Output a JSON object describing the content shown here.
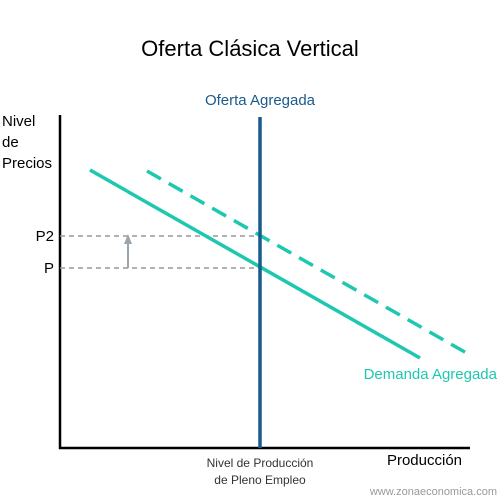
{
  "title": "Oferta Clásica Vertical",
  "y_axis_label": [
    "Nivel",
    "de",
    "Precios"
  ],
  "x_axis_label": "Producción",
  "supply_label": "Oferta Agregada",
  "demand_label": "Demanda Agregada",
  "price_labels": [
    "P2",
    "P"
  ],
  "full_employment_label": [
    "Nivel de Producción",
    "de Pleno Empleo"
  ],
  "watermark": "www.zonaeconomica.com"
}
